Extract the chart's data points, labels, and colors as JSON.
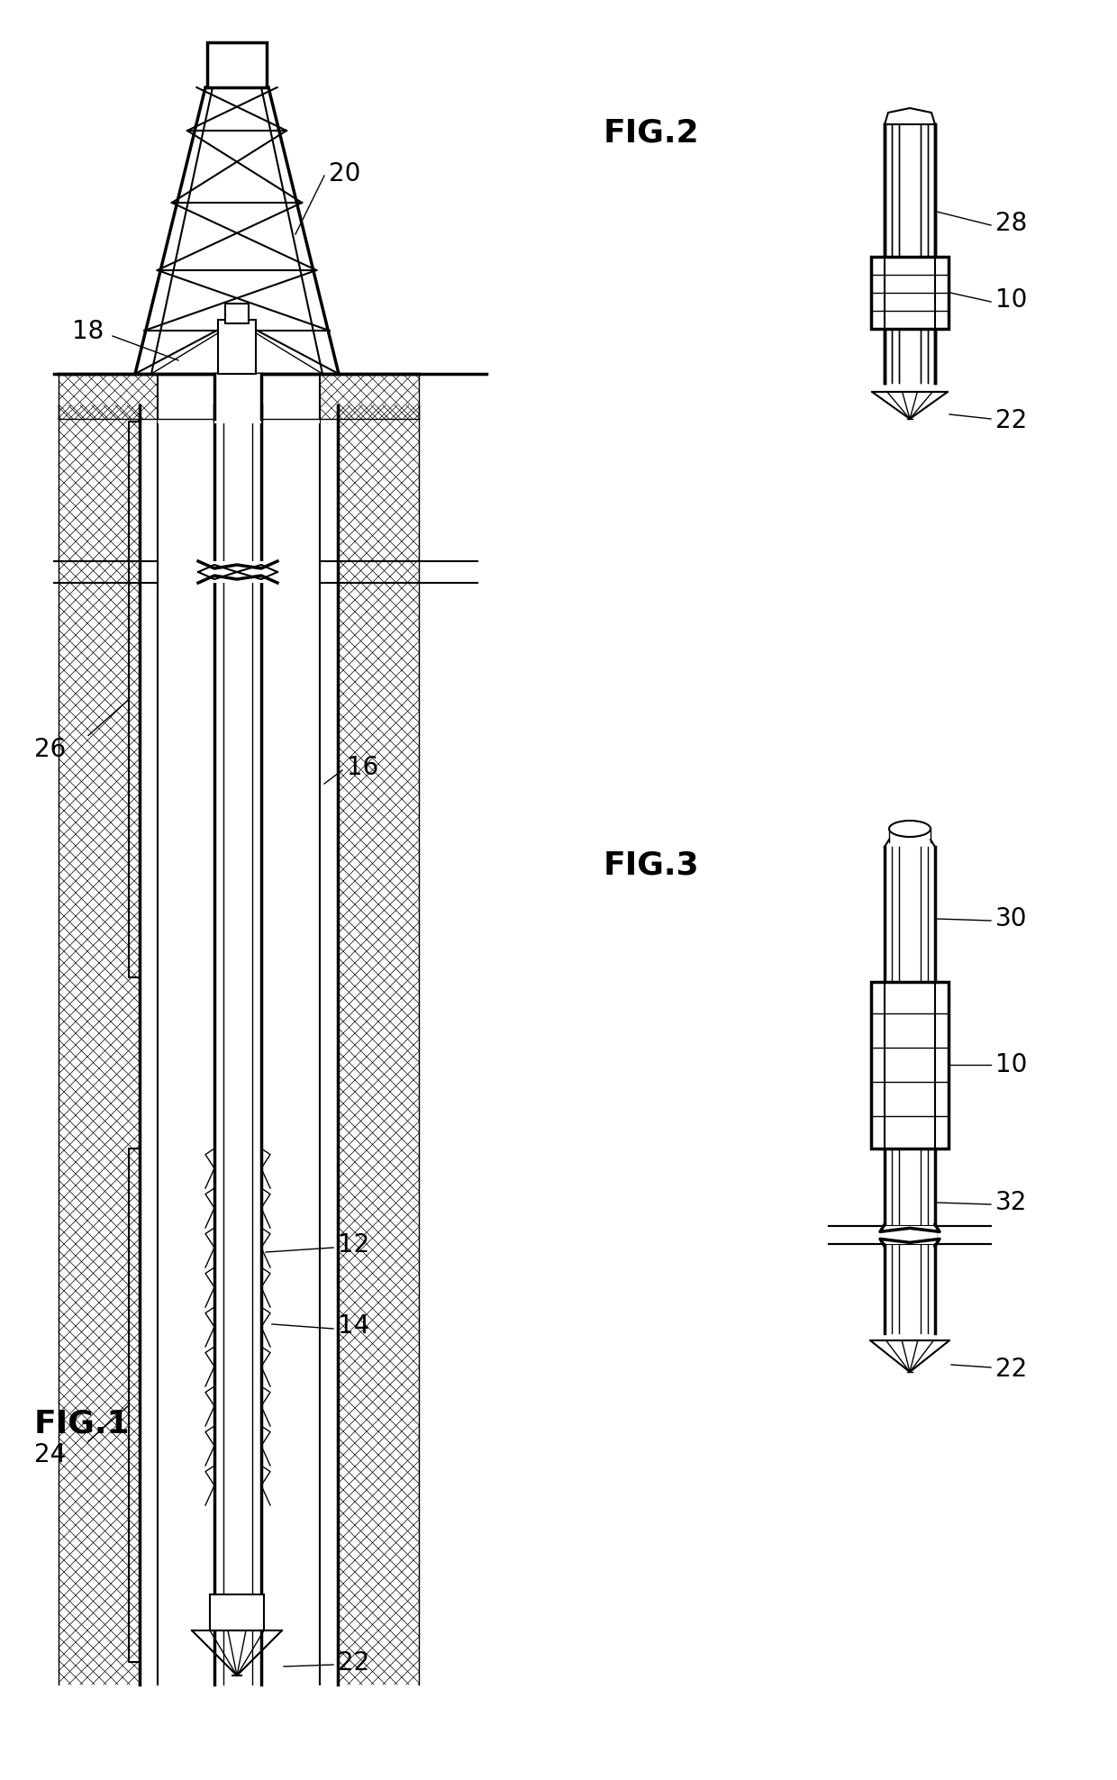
{
  "bg_color": "#ffffff",
  "line_color": "#000000",
  "fig1_label": "FIG.1",
  "fig2_label": "FIG.2",
  "fig3_label": "FIG.3",
  "font_size_fig_label": 26,
  "font_size_callout": 20
}
